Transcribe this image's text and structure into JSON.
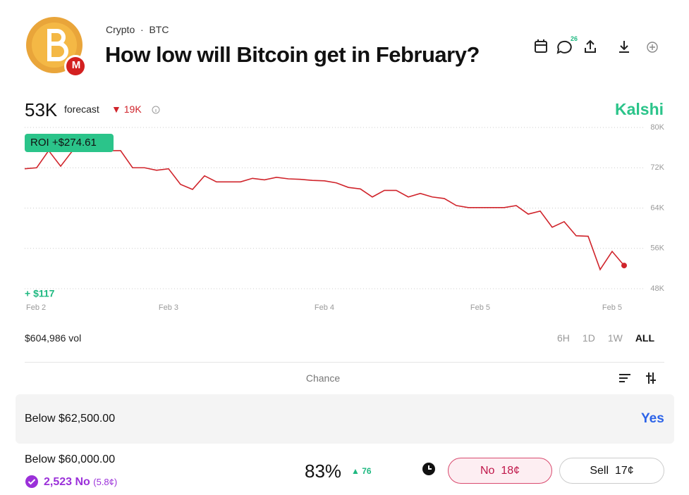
{
  "header": {
    "breadcrumb": [
      "Crypto",
      "BTC"
    ],
    "title": "How low will Bitcoin get in February?",
    "badge": "M",
    "comments": "26"
  },
  "forecast": {
    "value": "53K",
    "label": "forecast",
    "change": "19K"
  },
  "brand": "Kalshi",
  "chart_data": {
    "type": "line",
    "categories": [
      "Feb 2",
      null,
      null,
      null,
      null,
      null,
      null,
      null,
      null,
      null,
      null,
      null,
      "Feb 3",
      null,
      null,
      null,
      null,
      null,
      null,
      null,
      null,
      null,
      null,
      null,
      null,
      "Feb 4",
      null,
      null,
      null,
      null,
      null,
      null,
      null,
      null,
      null,
      null,
      null,
      null,
      "Feb 5",
      null,
      null,
      null,
      null,
      null,
      null,
      null,
      null,
      null,
      null,
      "Feb 5",
      null
    ],
    "series": [
      {
        "color": "#d0242b",
        "values": [
          71800,
          72000,
          75400,
          72300,
          75400,
          75400,
          75400,
          75400,
          75400,
          72000,
          72000,
          71500,
          71800,
          68700,
          67700,
          70400,
          69200,
          69200,
          69200,
          69900,
          69600,
          70100,
          69800,
          69700,
          69500,
          69400,
          69000,
          68100,
          67800,
          66200,
          67500,
          67500,
          66200,
          66900,
          66200,
          65900,
          64500,
          64100,
          64100,
          64100,
          64100,
          64500,
          62800,
          63400,
          60200,
          61300,
          58500,
          58400,
          51800,
          55400,
          52600
        ]
      }
    ],
    "ylim": [
      48000,
      80000
    ],
    "yticks": [
      {
        "value": 80000,
        "label": "80K"
      },
      {
        "value": 72000,
        "label": "72K"
      },
      {
        "value": 64000,
        "label": "64K"
      },
      {
        "value": 56000,
        "label": "56K"
      },
      {
        "value": 48000,
        "label": "48K"
      }
    ],
    "grid": true,
    "annotations": [
      "ROI +$274.61",
      "+ $117"
    ]
  },
  "volume": "$604,986 vol",
  "ranges": [
    "6H",
    "1D",
    "1W",
    "ALL"
  ],
  "column_header": "Chance",
  "outcomes": [
    {
      "label": "Below $62,500.00",
      "action": "Yes"
    },
    {
      "label": "Below $60,000.00",
      "position": "2,523 No",
      "position_price": "(5.8¢)",
      "chance": "83%",
      "chance_change": "76",
      "no_button": "No",
      "no_price": "18¢",
      "sell_button": "Sell",
      "sell_price": "17¢"
    }
  ]
}
